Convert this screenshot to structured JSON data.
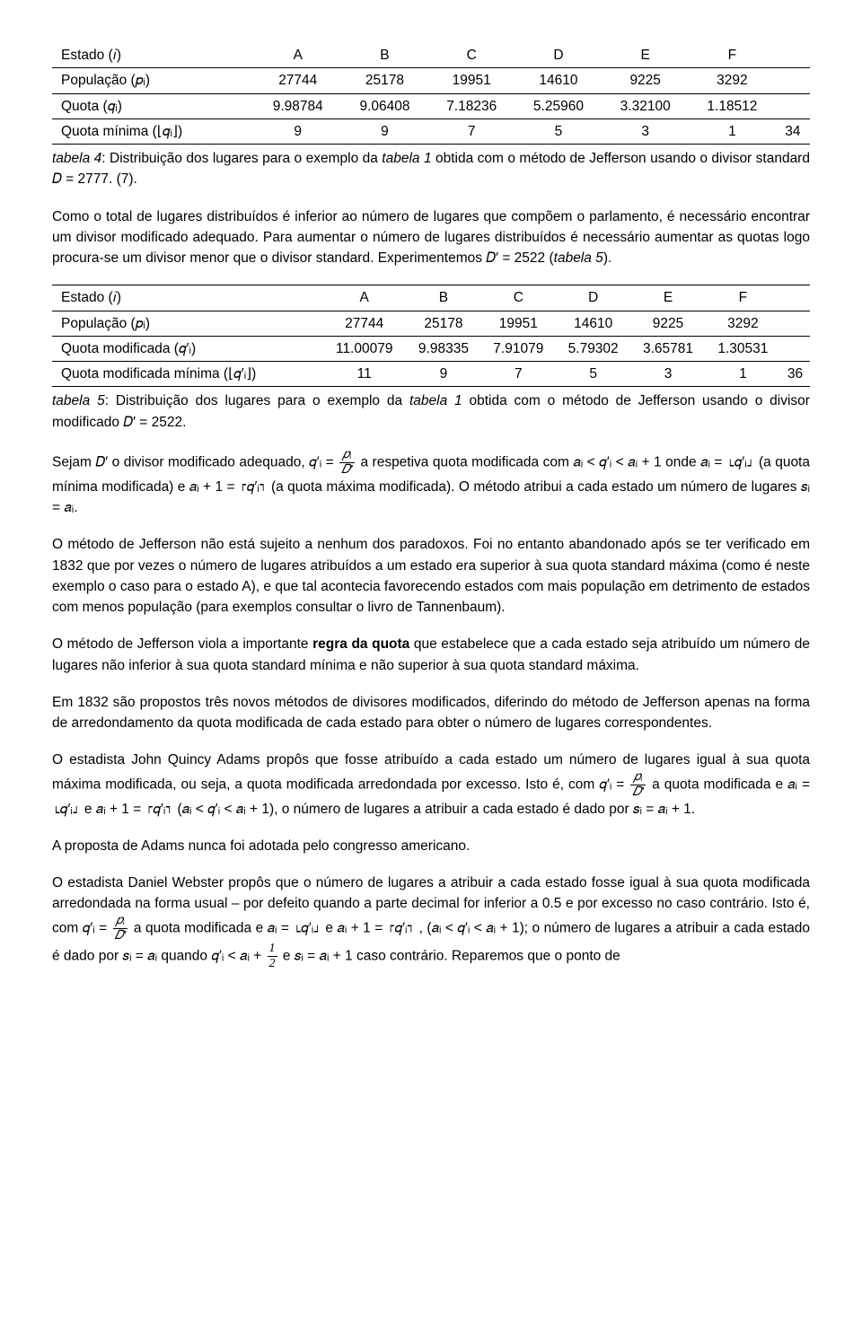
{
  "table4": {
    "headers": [
      "Estado (𝑖)",
      "A",
      "B",
      "C",
      "D",
      "E",
      "F",
      ""
    ],
    "rows": [
      {
        "label": "População (𝑝ᵢ)",
        "cells": [
          "27744",
          "25178",
          "19951",
          "14610",
          "9225",
          "3292",
          ""
        ]
      },
      {
        "label": "Quota (𝑞ᵢ)",
        "cells": [
          "9.98784",
          "9.06408",
          "7.18236",
          "5.25960",
          "3.32100",
          "1.18512",
          ""
        ]
      },
      {
        "label": "Quota mínima (⌊𝑞ᵢ⌋)",
        "cells": [
          "9",
          "9",
          "7",
          "5",
          "3",
          "1",
          "34"
        ]
      }
    ],
    "caption_head": "tabela 4",
    "caption_mid": ": Distribuição dos lugares para o exemplo da ",
    "caption_ref": "tabela 1",
    "caption_tail": " obtida com o método de Jefferson usando o divisor standard 𝐷 = 2777. (7)."
  },
  "p1_a": "Como o total de lugares distribuídos é inferior ao número de lugares que compõem o parlamento, é necessário encontrar um divisor modificado adequado. Para aumentar o número de lugares distribuídos é necessário aumentar as quotas logo procura-se um divisor menor que o divisor standard. Experimentemos 𝐷′ = 2522 (",
  "p1_b": "tabela 5",
  "p1_c": ").",
  "table5": {
    "headers": [
      "Estado (𝑖)",
      "A",
      "B",
      "C",
      "D",
      "E",
      "F",
      ""
    ],
    "rows": [
      {
        "label": "População (𝑝ᵢ)",
        "cells": [
          "27744",
          "25178",
          "19951",
          "14610",
          "9225",
          "3292",
          ""
        ]
      },
      {
        "label": "Quota modificada (𝑞′ᵢ)",
        "cells": [
          "11.00079",
          "9.98335",
          "7.91079",
          "5.79302",
          "3.65781",
          "1.30531",
          ""
        ]
      },
      {
        "label": "Quota modificada mínima (⌊𝑞′ᵢ⌋)",
        "cells": [
          "11",
          "9",
          "7",
          "5",
          "3",
          "1",
          "36"
        ]
      }
    ],
    "caption_head": "tabela 5",
    "caption_mid": ": Distribuição dos lugares para o exemplo da ",
    "caption_ref": "tabela 1",
    "caption_tail": " obtida com o método de Jefferson usando o divisor modificado 𝐷′ = 2522."
  },
  "p2": "Sejam 𝐷′ o divisor modificado adequado, 𝑞′ᵢ = ",
  "p2b": " a respetiva quota modificada com 𝑎ᵢ < 𝑞′ᵢ < 𝑎ᵢ + 1 onde 𝑎ᵢ = ⌊𝑞′ᵢ⌋ (a quota mínima modificada) e 𝑎ᵢ + 1 = ⌈𝑞′ᵢ⌉ (a quota máxima modificada). O método atribui a cada estado um número de lugares  𝑠ᵢ = 𝑎ᵢ.",
  "p3": "O método de Jefferson não está sujeito a nenhum dos paradoxos. Foi no entanto abandonado após se ter verificado em 1832 que por vezes o número de lugares atribuídos a um estado era superior à sua quota standard máxima (como é neste exemplo o caso para o estado A), e que tal acontecia favorecendo estados com mais população em detrimento de estados com menos população (para exemplos consultar o livro de Tannenbaum).",
  "p4a": "O método de Jefferson viola a importante ",
  "p4b": "regra da quota",
  "p4c": " que estabelece que a cada estado seja atribuído um número de lugares não inferior à sua quota standard mínima e não superior à sua quota standard máxima.",
  "p5": "Em 1832 são propostos três novos métodos de divisores modificados, diferindo do método de Jefferson apenas na forma de arredondamento da quota modificada de cada estado para obter o número de lugares correspondentes.",
  "p6a": "O estadista John Quincy Adams propôs que fosse atribuído a cada estado um número de lugares igual à sua quota máxima modificada, ou seja, a quota modificada arredondada por excesso. Isto é, com 𝑞′ᵢ = ",
  "p6b": " a quota modificada e 𝑎ᵢ = ⌊𝑞′ᵢ⌋ e 𝑎ᵢ + 1 = ⌈𝑞′ᵢ⌉ (𝑎ᵢ < 𝑞′ᵢ < 𝑎ᵢ + 1), o número de lugares a atribuir a cada estado é dado por  𝑠ᵢ = 𝑎ᵢ + 1.",
  "p7": "A proposta  de Adams nunca foi adotada pelo congresso americano.",
  "p8a": "O estadista Daniel Webster propôs que o número de lugares a atribuir a cada estado fosse igual à sua quota modificada arredondada na forma usual – por defeito quando a parte decimal for inferior a 0.5 e por excesso no caso contrário. Isto é, com 𝑞′ᵢ = ",
  "p8b": " a quota modificada e 𝑎ᵢ = ⌊𝑞′ᵢ⌋ e 𝑎ᵢ + 1 = ⌈𝑞′ᵢ⌉ , (𝑎ᵢ < 𝑞′ᵢ < 𝑎ᵢ + 1); o número de lugares a atribuir a cada estado é dado por  𝑠ᵢ = 𝑎ᵢ quando 𝑞′ᵢ < 𝑎ᵢ + ",
  "p8c": " e 𝑠ᵢ = 𝑎ᵢ + 1 caso contrário. Reparemos que o ponto de",
  "frac": {
    "num": "𝑝ᵢ",
    "den": "𝐷′"
  },
  "half": {
    "num": "1",
    "den": "2"
  }
}
